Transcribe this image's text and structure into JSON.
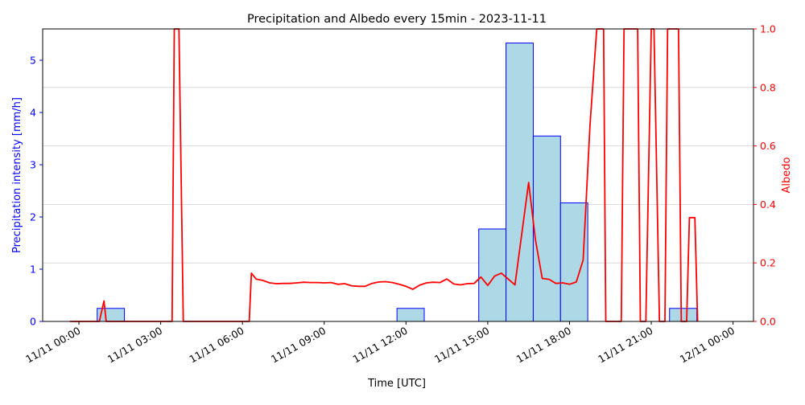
{
  "chart_data": {
    "type": "bar+line",
    "title": "Precipitation and Albedo every 15min - 2023-11-11",
    "xlabel": "Time [UTC]",
    "ylabel_left": "Precipitation intensity [mm/h]",
    "ylabel_right": "Albedo",
    "x_range_hours": [
      -1.33,
      24.75
    ],
    "ylim_left": [
      0,
      5.6
    ],
    "ylim_right": [
      0,
      1.0
    ],
    "x_ticks": [
      {
        "hour": 0,
        "label": "11/11 00:00"
      },
      {
        "hour": 3,
        "label": "11/11 03:00"
      },
      {
        "hour": 6,
        "label": "11/11 06:00"
      },
      {
        "hour": 9,
        "label": "11/11 09:00"
      },
      {
        "hour": 12,
        "label": "11/11 12:00"
      },
      {
        "hour": 15,
        "label": "11/11 15:00"
      },
      {
        "hour": 18,
        "label": "11/11 18:00"
      },
      {
        "hour": 21,
        "label": "11/11 21:00"
      },
      {
        "hour": 24,
        "label": "12/11 00:00"
      }
    ],
    "left_ticks": [
      0,
      1,
      2,
      3,
      4,
      5
    ],
    "right_ticks": [
      "0.0",
      "0.2",
      "0.4",
      "0.6",
      "0.8",
      "1.0"
    ],
    "grid": "horizontal, right axis",
    "precipitation_bars": [
      {
        "start": 0.67,
        "end": 1.67,
        "value": 0.25
      },
      {
        "start": 11.67,
        "end": 12.67,
        "value": 0.25
      },
      {
        "start": 14.67,
        "end": 15.67,
        "value": 1.77
      },
      {
        "start": 15.67,
        "end": 16.67,
        "value": 5.33
      },
      {
        "start": 16.67,
        "end": 17.67,
        "value": 3.55
      },
      {
        "start": 17.67,
        "end": 18.67,
        "value": 2.27
      },
      {
        "start": 21.67,
        "end": 22.67,
        "value": 0.25
      }
    ],
    "albedo_series": {
      "x": [
        -0.33,
        0.75,
        0.92,
        1.0,
        1.08,
        3.42,
        3.5,
        3.67,
        3.83,
        6.25,
        6.33,
        6.5,
        6.75,
        7.0,
        7.25,
        7.5,
        7.75,
        8.0,
        8.25,
        8.5,
        8.75,
        9.0,
        9.25,
        9.5,
        9.75,
        10.0,
        10.25,
        10.5,
        10.75,
        11.0,
        11.25,
        11.5,
        11.75,
        12.0,
        12.25,
        12.5,
        12.75,
        13.0,
        13.25,
        13.5,
        13.75,
        14.0,
        14.25,
        14.5,
        14.75,
        15.0,
        15.25,
        15.5,
        15.75,
        16.0,
        16.25,
        16.5,
        16.75,
        17.0,
        17.25,
        17.5,
        17.75,
        18.0,
        18.25,
        18.5,
        18.75,
        19.0,
        19.25,
        19.33,
        19.9,
        20.0,
        20.5,
        20.6,
        20.8,
        21.0,
        21.1,
        21.3,
        21.5,
        21.6,
        22.0,
        22.1,
        22.3,
        22.4,
        22.6,
        22.7
      ],
      "y": [
        0,
        0,
        0.07,
        0,
        0,
        0,
        1.0,
        1.0,
        0,
        0,
        0.165,
        0.145,
        0.14,
        0.132,
        0.129,
        0.13,
        0.13,
        0.132,
        0.134,
        0.133,
        0.133,
        0.132,
        0.133,
        0.127,
        0.129,
        0.122,
        0.12,
        0.12,
        0.13,
        0.135,
        0.136,
        0.133,
        0.127,
        0.12,
        0.11,
        0.124,
        0.132,
        0.134,
        0.133,
        0.145,
        0.128,
        0.125,
        0.129,
        0.13,
        0.152,
        0.123,
        0.155,
        0.165,
        0.145,
        0.125,
        0.3,
        0.475,
        0.28,
        0.147,
        0.144,
        0.13,
        0.132,
        0.127,
        0.135,
        0.21,
        0.67,
        1.0,
        1.0,
        0,
        0,
        1.0,
        1.0,
        0,
        0,
        1.0,
        1.0,
        0,
        0,
        1.0,
        1.0,
        0,
        0,
        0.355,
        0.355,
        0
      ]
    },
    "colors": {
      "bar_fill": "#add8e6",
      "bar_edge": "#0000ff",
      "line": "#ff0000",
      "left_axis": "#0000ff",
      "right_axis": "#ff0000",
      "grid": "#d3d3d3"
    }
  }
}
